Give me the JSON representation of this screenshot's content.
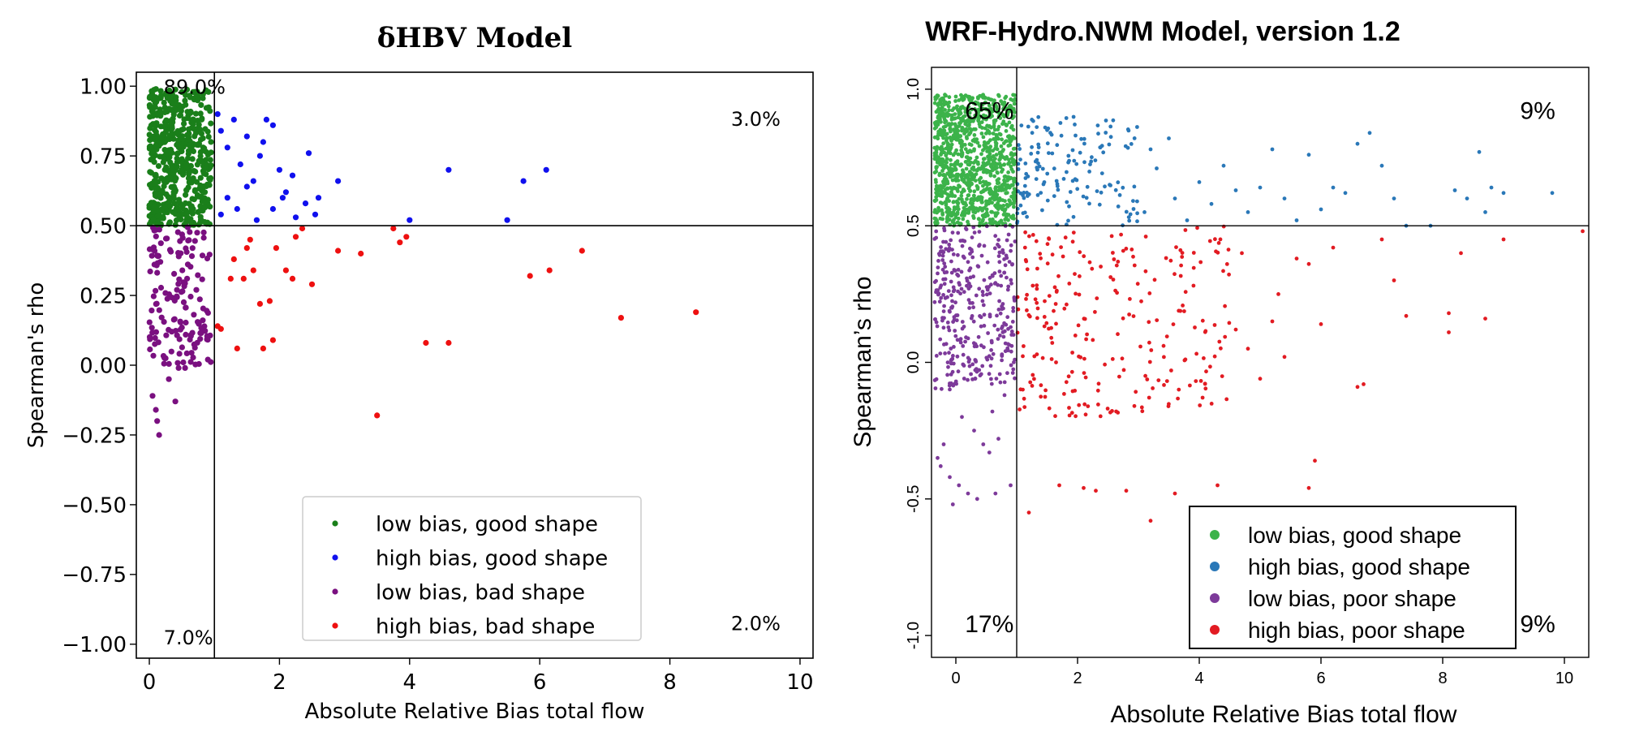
{
  "chart_data": [
    {
      "type": "scatter",
      "title": "δHBV Model",
      "xlabel": "Absolute Relative Bias total flow",
      "ylabel": "Spearman's rho",
      "xlim": [
        -0.2,
        10.2
      ],
      "ylim": [
        -1.05,
        1.05
      ],
      "xticks": [
        0,
        2,
        4,
        6,
        8,
        10
      ],
      "xtick_labels": [
        "0",
        "2",
        "4",
        "6",
        "8",
        "10"
      ],
      "yticks": [
        1.0,
        0.75,
        0.5,
        0.25,
        0.0,
        -0.25,
        -0.5,
        -0.75,
        -1.0
      ],
      "ytick_labels": [
        "1.00",
        "0.75",
        "0.50",
        "0.25",
        "0.00",
        "−0.25",
        "−0.50",
        "−0.75",
        "−1.00"
      ],
      "grid": false,
      "legend_position": "bottom-right",
      "threshold_lines": {
        "x": 1.0,
        "y": 0.5
      },
      "quadrant_labels": [
        {
          "text": "89.0%",
          "x": 0.22,
          "y": 0.99
        },
        {
          "text": "3.0%",
          "x": 9.7,
          "y": 0.91
        },
        {
          "text": "7.0%",
          "x": 0.22,
          "y": -1.0
        },
        {
          "text": "2.0%",
          "x": 9.7,
          "y": -0.92
        }
      ],
      "series": [
        {
          "name": "low bias, good shape",
          "color": "#1a7f1a",
          "cluster": {
            "count": 520,
            "x": [
              0.0,
              0.95
            ],
            "y": [
              0.5,
              0.99
            ],
            "seed": 11
          }
        },
        {
          "name": "high bias, good shape",
          "color": "#1010ee",
          "points": [
            [
              1.05,
              0.9
            ],
            [
              1.1,
              0.84
            ],
            [
              1.2,
              0.78
            ],
            [
              1.3,
              0.88
            ],
            [
              1.4,
              0.72
            ],
            [
              1.5,
              0.82
            ],
            [
              1.6,
              0.66
            ],
            [
              1.7,
              0.75
            ],
            [
              1.8,
              0.88
            ],
            [
              1.9,
              0.86
            ],
            [
              2.0,
              0.7
            ],
            [
              2.1,
              0.62
            ],
            [
              1.2,
              0.6
            ],
            [
              1.35,
              0.56
            ],
            [
              1.5,
              0.64
            ],
            [
              1.65,
              0.52
            ],
            [
              1.9,
              0.56
            ],
            [
              2.05,
              0.6
            ],
            [
              2.2,
              0.68
            ],
            [
              2.4,
              0.58
            ],
            [
              2.55,
              0.54
            ],
            [
              2.6,
              0.6
            ],
            [
              2.45,
              0.76
            ],
            [
              2.9,
              0.66
            ],
            [
              1.1,
              0.54
            ],
            [
              4.0,
              0.52
            ],
            [
              4.6,
              0.7
            ],
            [
              5.5,
              0.52
            ],
            [
              5.75,
              0.66
            ],
            [
              6.1,
              0.7
            ],
            [
              1.75,
              0.8
            ],
            [
              2.25,
              0.53
            ]
          ]
        },
        {
          "name": "low bias, bad shape",
          "color": "#7a1080",
          "cluster": {
            "count": 150,
            "x": [
              0.0,
              0.95
            ],
            "y": [
              0.0,
              0.5
            ],
            "seed": 23
          },
          "points": [
            [
              0.05,
              -0.11
            ],
            [
              0.1,
              -0.16
            ],
            [
              0.12,
              -0.2
            ],
            [
              0.15,
              -0.25
            ],
            [
              0.3,
              -0.05
            ],
            [
              0.4,
              -0.13
            ],
            [
              0.55,
              -0.01
            ],
            [
              0.45,
              -0.01
            ],
            [
              0.9,
              0.02
            ]
          ]
        },
        {
          "name": "high bias, bad shape",
          "color": "#ee1010",
          "points": [
            [
              1.05,
              0.14
            ],
            [
              1.1,
              0.13
            ],
            [
              1.25,
              0.31
            ],
            [
              1.35,
              0.06
            ],
            [
              1.45,
              0.31
            ],
            [
              1.5,
              0.42
            ],
            [
              1.55,
              0.45
            ],
            [
              1.6,
              0.34
            ],
            [
              1.7,
              0.22
            ],
            [
              1.75,
              0.06
            ],
            [
              1.85,
              0.23
            ],
            [
              1.9,
              0.09
            ],
            [
              1.95,
              0.42
            ],
            [
              2.1,
              0.34
            ],
            [
              2.2,
              0.31
            ],
            [
              2.25,
              0.46
            ],
            [
              2.35,
              0.49
            ],
            [
              2.5,
              0.29
            ],
            [
              2.9,
              0.41
            ],
            [
              3.25,
              0.4
            ],
            [
              3.5,
              -0.18
            ],
            [
              3.75,
              0.49
            ],
            [
              3.85,
              0.44
            ],
            [
              3.95,
              0.46
            ],
            [
              4.25,
              0.08
            ],
            [
              4.6,
              0.08
            ],
            [
              5.85,
              0.32
            ],
            [
              6.15,
              0.34
            ],
            [
              6.65,
              0.41
            ],
            [
              7.25,
              0.17
            ],
            [
              8.4,
              0.19
            ],
            [
              1.3,
              0.38
            ]
          ]
        }
      ]
    },
    {
      "type": "scatter",
      "title": "WRF-Hydro.NWM Model, version 1.2",
      "xlabel": "Absolute Relative Bias total flow",
      "ylabel": "Spearman’s rho",
      "xlim": [
        -0.4,
        10.4
      ],
      "ylim": [
        -1.08,
        1.08
      ],
      "xticks": [
        0,
        2,
        4,
        6,
        8,
        10
      ],
      "xtick_labels": [
        "0",
        "2",
        "4",
        "6",
        "8",
        "10"
      ],
      "yticks": [
        1.0,
        0.5,
        0.0,
        -0.5,
        -1.0
      ],
      "ytick_labels": [
        "1.0",
        "0.5",
        "0.0",
        "-0.5",
        "-1.0"
      ],
      "grid": false,
      "legend_position": "bottom-right",
      "threshold_lines": {
        "x": 1.0,
        "y": 0.5
      },
      "quadrant_labels": [
        {
          "text": "65%",
          "x": 0.15,
          "y": 0.98
        },
        {
          "text": "9%",
          "x": 9.85,
          "y": 0.98
        },
        {
          "text": "17%",
          "x": 0.15,
          "y": -1.0
        },
        {
          "text": "9%",
          "x": 9.85,
          "y": -1.0
        }
      ],
      "series": [
        {
          "name": "low bias, good shape",
          "color": "#3cb34a",
          "cluster": {
            "count": 1100,
            "x": [
              -0.35,
              0.98
            ],
            "y": [
              0.5,
              0.98
            ],
            "seed": 31
          }
        },
        {
          "name": "high bias, good shape",
          "color": "#2a78b8",
          "cluster": {
            "count": 150,
            "x": [
              1.0,
              3.0
            ],
            "y": [
              0.5,
              0.9
            ],
            "seed": 37
          },
          "points": [
            [
              3.2,
              0.78
            ],
            [
              3.3,
              0.71
            ],
            [
              3.5,
              0.82
            ],
            [
              3.6,
              0.6
            ],
            [
              3.8,
              0.52
            ],
            [
              4.0,
              0.66
            ],
            [
              4.2,
              0.58
            ],
            [
              4.4,
              0.72
            ],
            [
              4.6,
              0.63
            ],
            [
              4.8,
              0.55
            ],
            [
              5.0,
              0.64
            ],
            [
              5.2,
              0.78
            ],
            [
              5.4,
              0.6
            ],
            [
              5.6,
              0.52
            ],
            [
              5.8,
              0.76
            ],
            [
              6.0,
              0.56
            ],
            [
              6.2,
              0.64
            ],
            [
              6.4,
              0.62
            ],
            [
              6.6,
              0.8
            ],
            [
              6.8,
              0.84
            ],
            [
              7.0,
              0.72
            ],
            [
              7.2,
              0.6
            ],
            [
              7.4,
              0.5
            ],
            [
              7.8,
              0.5
            ],
            [
              8.2,
              0.63
            ],
            [
              8.4,
              0.6
            ],
            [
              8.6,
              0.77
            ],
            [
              8.8,
              0.64
            ],
            [
              9.0,
              0.62
            ],
            [
              9.8,
              0.62
            ],
            [
              3.1,
              0.55
            ],
            [
              8.7,
              0.55
            ]
          ]
        },
        {
          "name": "low bias, poor shape",
          "color": "#7d3a9a",
          "cluster": {
            "count": 350,
            "x": [
              -0.35,
              0.98
            ],
            "y": [
              -0.1,
              0.5
            ],
            "seed": 41
          },
          "points": [
            [
              -0.3,
              -0.35
            ],
            [
              -0.25,
              -0.38
            ],
            [
              -0.2,
              -0.3
            ],
            [
              -0.1,
              -0.42
            ],
            [
              -0.05,
              -0.52
            ],
            [
              0.05,
              -0.45
            ],
            [
              0.2,
              -0.48
            ],
            [
              0.35,
              -0.5
            ],
            [
              0.45,
              -0.3
            ],
            [
              0.55,
              -0.33
            ],
            [
              0.65,
              -0.48
            ],
            [
              0.3,
              -0.25
            ],
            [
              0.1,
              -0.2
            ],
            [
              0.6,
              -0.18
            ],
            [
              0.8,
              -0.12
            ],
            [
              0.9,
              -0.45
            ],
            [
              0.7,
              -0.28
            ]
          ]
        },
        {
          "name": "high bias, poor shape",
          "color": "#e21b22",
          "cluster": {
            "count": 240,
            "x": [
              1.0,
              4.5
            ],
            "y": [
              -0.2,
              0.5
            ],
            "seed": 53
          },
          "points": [
            [
              1.2,
              -0.55
            ],
            [
              1.7,
              -0.45
            ],
            [
              2.1,
              -0.46
            ],
            [
              2.3,
              -0.47
            ],
            [
              2.8,
              -0.47
            ],
            [
              3.2,
              -0.58
            ],
            [
              3.6,
              -0.48
            ],
            [
              4.3,
              -0.45
            ],
            [
              5.9,
              -0.36
            ],
            [
              5.8,
              -0.46
            ],
            [
              4.6,
              0.12
            ],
            [
              4.8,
              0.05
            ],
            [
              5.0,
              -0.06
            ],
            [
              5.2,
              0.15
            ],
            [
              5.4,
              0.02
            ],
            [
              5.6,
              0.38
            ],
            [
              5.8,
              0.36
            ],
            [
              6.0,
              0.14
            ],
            [
              6.2,
              0.42
            ],
            [
              6.6,
              -0.09
            ],
            [
              6.7,
              -0.08
            ],
            [
              7.0,
              0.45
            ],
            [
              7.2,
              0.3
            ],
            [
              7.4,
              0.17
            ],
            [
              8.1,
              0.18
            ],
            [
              8.1,
              0.11
            ],
            [
              8.3,
              0.4
            ],
            [
              8.7,
              0.16
            ],
            [
              9.0,
              0.45
            ],
            [
              10.3,
              0.48
            ],
            [
              4.7,
              0.4
            ],
            [
              5.3,
              0.25
            ]
          ]
        }
      ]
    }
  ]
}
